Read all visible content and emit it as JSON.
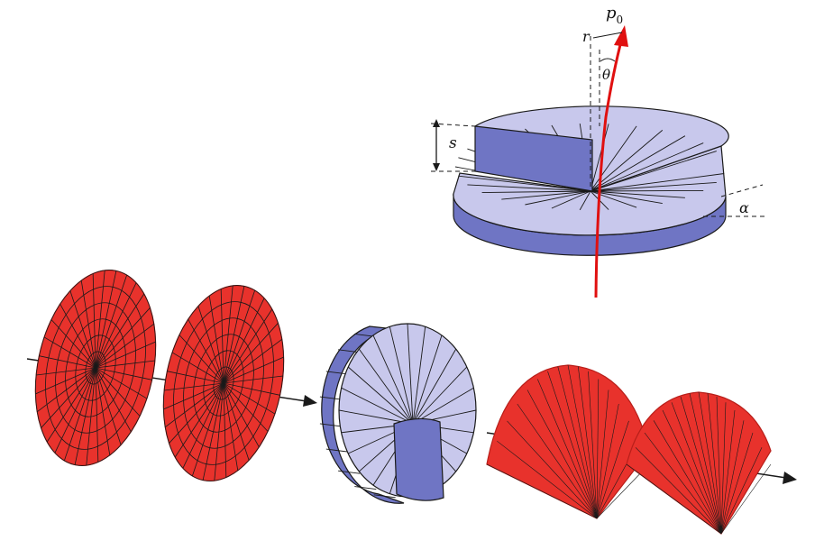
{
  "figure": {
    "description_labels": {
      "p0_main": "p",
      "p0_sub": "0",
      "r": "r",
      "theta": "θ",
      "s": "s",
      "alpha": "α"
    },
    "colors": {
      "plate_face": "#c8c8ec",
      "plate_side": "#6f75c4",
      "plate_dark": "#5a60b0",
      "wave_red": "#e8322c",
      "wave_dark": "#b81f1a",
      "beam_red": "#e01010",
      "mesh_line": "#1a1a1a"
    },
    "counts": {
      "spiral_plate_sectors": 28,
      "flat_wave_radial_lines": 32,
      "flat_wave_rings": 6,
      "side_plate_sectors": 24
    }
  }
}
